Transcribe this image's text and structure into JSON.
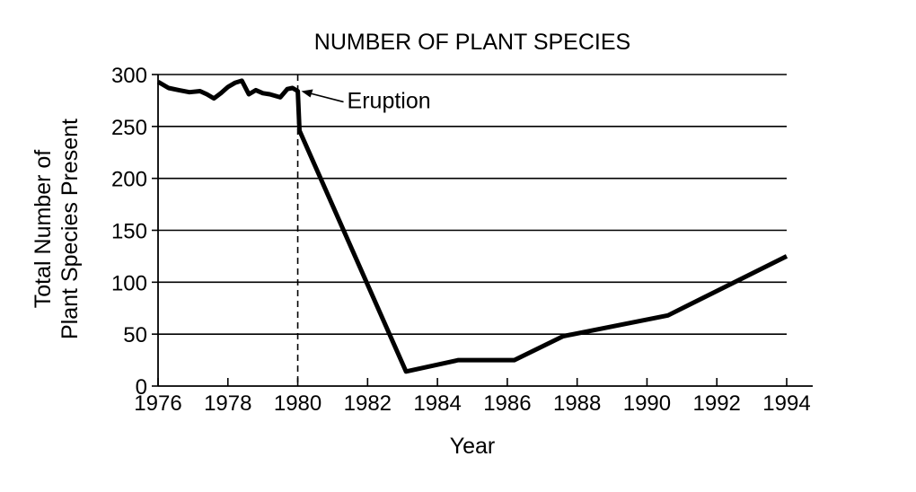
{
  "chart_data": {
    "type": "line",
    "title": "NUMBER OF PLANT SPECIES",
    "xlabel": "Year",
    "ylabel": [
      "Total Number of",
      "Plant Species Present"
    ],
    "xlim": [
      1976,
      1994
    ],
    "ylim": [
      0,
      300
    ],
    "xticks": [
      "1976",
      "1978",
      "1980",
      "1982",
      "1984",
      "1986",
      "1988",
      "1990",
      "1992",
      "1994"
    ],
    "yticks": [
      "0",
      "50",
      "100",
      "150",
      "200",
      "250",
      "300"
    ],
    "grid": "horizontal",
    "series": [
      {
        "x": [
          1976.0,
          1976.3,
          1976.6,
          1976.9,
          1977.2,
          1977.4,
          1977.6,
          1977.8,
          1978.0,
          1978.2,
          1978.4,
          1978.6,
          1978.8,
          1979.0,
          1979.2,
          1979.5,
          1979.7,
          1979.85,
          1980.0,
          1980.05,
          1983.1,
          1984.6,
          1986.2,
          1987.6,
          1990.6,
          1994.0
        ],
        "y": [
          293,
          287,
          285,
          283,
          284,
          281,
          277,
          282,
          288,
          292,
          294,
          281,
          285,
          282,
          281,
          278,
          286,
          287,
          284,
          246,
          14,
          25,
          25,
          48,
          68,
          125
        ]
      }
    ],
    "markers": [
      {
        "x": 1980,
        "style": "dashed-vertical"
      }
    ],
    "annotations": [
      {
        "text": "Eruption",
        "x": 1980,
        "y": 284
      }
    ]
  }
}
